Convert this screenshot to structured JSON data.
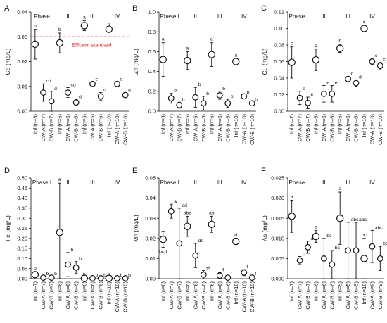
{
  "colors": {
    "ink": "#111111",
    "marker_fill": "#ffffff",
    "reference_line": "#e0191b"
  },
  "chart_data": [
    {
      "type": "scatter",
      "panel": "A",
      "ylabel": "Cd (mg/L)",
      "ylim": [
        0,
        0.04
      ],
      "yticks": [
        "0.00",
        "0.01",
        "0.02",
        "0.03",
        "0.04"
      ],
      "phases": [
        "Phase",
        "II",
        "III",
        "IV"
      ],
      "reference_line": {
        "y": 0.03,
        "label": "Effluent standard"
      },
      "groups": [
        {
          "categories": [
            "Inf (n=8)",
            "CW-A (n=7)",
            "CW-B (n=7)"
          ],
          "points": [
            {
              "mean": 0.027,
              "sd": 0.006,
              "letter": "b"
            },
            {
              "mean": 0.0075,
              "sd": 0.0035,
              "letter": "cd"
            },
            {
              "mean": 0.004,
              "sd": 0.004,
              "letter": "d"
            }
          ]
        },
        {
          "categories": [
            "Inf (n=6)",
            "CW-A (n=6)",
            "CW-B (n=6)"
          ],
          "points": [
            {
              "mean": 0.0275,
              "sd": 0.004,
              "letter": "b"
            },
            {
              "mean": 0.0075,
              "sd": 0.002,
              "letter": "cd"
            },
            {
              "mean": 0.0035,
              "sd": 0.0012,
              "letter": "d"
            }
          ]
        },
        {
          "categories": [
            "Inf (n=6)",
            "CW-A (n=6)",
            "CW-B (n=6)"
          ],
          "points": [
            {
              "mean": 0.0345,
              "sd": 0.002,
              "letter": "a"
            },
            {
              "mean": 0.011,
              "sd": 0.0008,
              "letter": "c"
            },
            {
              "mean": 0.006,
              "sd": 0.0015,
              "letter": "d"
            }
          ]
        },
        {
          "categories": [
            "Inf (n=10)",
            "CW-A (n=10)",
            "CW-B (n=10)"
          ],
          "points": [
            {
              "mean": 0.033,
              "sd": 0.0005,
              "letter": "a"
            },
            {
              "mean": 0.011,
              "sd": 0.0008,
              "letter": "c"
            },
            {
              "mean": 0.0065,
              "sd": 0.0008,
              "letter": "d"
            }
          ]
        }
      ]
    },
    {
      "type": "scatter",
      "panel": "B",
      "ylabel": "Zn (mg/L)",
      "ylim": [
        0,
        1
      ],
      "yticks": [
        "0.0",
        "0.2",
        "0.4",
        "0.6",
        "0.8",
        "1.0"
      ],
      "phases": [
        "Phase I",
        "II",
        "III",
        "IV"
      ],
      "groups": [
        {
          "categories": [
            "Inf (n=8)",
            "CW-A (n=7)",
            "CW-B (n=7)"
          ],
          "points": [
            {
              "mean": 0.52,
              "sd": 0.17,
              "letter": "a"
            },
            {
              "mean": 0.13,
              "sd": 0.05,
              "letter": "b"
            },
            {
              "mean": 0.06,
              "sd": 0.03,
              "letter": "b"
            }
          ]
        },
        {
          "categories": [
            "Inf (n=6)",
            "CW-A (n=6)",
            "CW-B (n=6)"
          ],
          "points": [
            {
              "mean": 0.51,
              "sd": 0.09,
              "letter": "a"
            },
            {
              "mean": 0.14,
              "sd": 0.1,
              "letter": "b"
            },
            {
              "mean": 0.08,
              "sd": 0.07,
              "letter": "b"
            }
          ]
        },
        {
          "categories": [
            "Inf (n=6)",
            "CW-A (n=6)",
            "CW-B (n=6)"
          ],
          "points": [
            {
              "mean": 0.57,
              "sd": 0.12,
              "letter": "a"
            },
            {
              "mean": 0.16,
              "sd": 0.04,
              "letter": "b"
            },
            {
              "mean": 0.08,
              "sd": 0.04,
              "letter": "b"
            }
          ]
        },
        {
          "categories": [
            "Inf (n=10)",
            "CW-A (n=10)",
            "CW-B (n=10)"
          ],
          "points": [
            {
              "mean": 0.5,
              "sd": 0.03,
              "letter": "a"
            },
            {
              "mean": 0.15,
              "sd": 0.01,
              "letter": "b"
            },
            {
              "mean": 0.08,
              "sd": 0.01,
              "letter": "b"
            }
          ]
        }
      ]
    },
    {
      "type": "scatter",
      "panel": "C",
      "ylabel": "Cu (mg/L)",
      "ylim": [
        0,
        0.12
      ],
      "yticks": [
        "0.00",
        "0.02",
        "0.04",
        "0.06",
        "0.08",
        "0.10",
        "0.12"
      ],
      "phases": [
        "Phase I",
        "II",
        "III",
        "IV"
      ],
      "groups": [
        {
          "categories": [
            "Inf (n=7)",
            "CW-A (n=7)",
            "CW-B (n=7)"
          ],
          "points": [
            {
              "mean": 0.059,
              "sd": 0.019,
              "letter": "c"
            },
            {
              "mean": 0.016,
              "sd": 0.008,
              "letter": "e"
            },
            {
              "mean": 0.01,
              "sd": 0.007,
              "letter": "e"
            }
          ]
        },
        {
          "categories": [
            "Inf (n=6)",
            "CW-A (n=6)",
            "CW-B (n=6)"
          ],
          "points": [
            {
              "mean": 0.062,
              "sd": 0.013,
              "letter": "c"
            },
            {
              "mean": 0.021,
              "sd": 0.01,
              "letter": "e"
            },
            {
              "mean": 0.021,
              "sd": 0.01,
              "letter": "e"
            }
          ]
        },
        {
          "categories": [
            "Inf (n=6)",
            "CW-A (n=6)",
            "CW-B (n=6)"
          ],
          "points": [
            {
              "mean": 0.076,
              "sd": 0.005,
              "letter": "b"
            },
            {
              "mean": 0.039,
              "sd": 0.003,
              "letter": "d"
            },
            {
              "mean": 0.034,
              "sd": 0.004,
              "letter": "d"
            }
          ]
        },
        {
          "categories": [
            "Inf (n=10)",
            "CW-A (n=10)",
            "CW-B (n=10)"
          ],
          "points": [
            {
              "mean": 0.1,
              "sd": 0.004,
              "letter": "a"
            },
            {
              "mean": 0.06,
              "sd": 0.004,
              "letter": "c"
            },
            {
              "mean": 0.055,
              "sd": 0.004,
              "letter": "c"
            }
          ]
        }
      ]
    },
    {
      "type": "scatter",
      "panel": "D",
      "ylabel": "Fe (mg/L)",
      "ylim": [
        0,
        0.5
      ],
      "yticks": [
        "0.00",
        "0.05",
        "0.10",
        "0.15",
        "0.20",
        "0.25",
        "0.30",
        "0.35",
        "0.40",
        "0.45",
        "0.50"
      ],
      "phases": [
        "Phase I",
        "II",
        "III",
        "IV"
      ],
      "groups": [
        {
          "categories": [
            "Inf (n=7)",
            "CW-A (n=7)",
            "CW-B (n=7)"
          ],
          "points": [
            {
              "mean": 0.02,
              "sd": 0.015,
              "letter": "b"
            },
            {
              "mean": 0.005,
              "sd": 0.005,
              "letter": "b"
            },
            {
              "mean": 0.005,
              "sd": 0.005,
              "letter": "b"
            }
          ]
        },
        {
          "categories": [
            "Inf (n=6)",
            "CW-A (n=6)",
            "CW-B (n=6)"
          ],
          "points": [
            {
              "mean": 0.23,
              "sd": 0.245,
              "letter": "a"
            },
            {
              "mean": 0.07,
              "sd": 0.06,
              "letter": "b"
            },
            {
              "mean": 0.055,
              "sd": 0.03,
              "letter": "b"
            }
          ]
        },
        {
          "categories": [
            "Inf (n=6)",
            "CW-A (n=6)",
            "CW-B (n=6)"
          ],
          "points": [
            {
              "mean": 0.002,
              "sd": 0.002,
              "letter": "b"
            },
            {
              "mean": 0.002,
              "sd": 0.002,
              "letter": "b"
            },
            {
              "mean": 0.002,
              "sd": 0.002,
              "letter": "b"
            }
          ]
        },
        {
          "categories": [
            "Inf (n=10)",
            "CW-A (n=10)",
            "CW-B (n=10)"
          ],
          "points": [
            {
              "mean": 0.002,
              "sd": 0.002,
              "letter": "b"
            },
            {
              "mean": 0.002,
              "sd": 0.002,
              "letter": "b"
            },
            {
              "mean": 0.002,
              "sd": 0.002,
              "letter": "b"
            }
          ]
        }
      ]
    },
    {
      "type": "scatter",
      "panel": "E",
      "ylabel": "Mn (mg/L)",
      "ylim": [
        0,
        0.05
      ],
      "yticks": [
        "0.00",
        "0.01",
        "0.02",
        "0.03",
        "0.04",
        "0.05"
      ],
      "phases": [
        "Phase I",
        "II",
        "III",
        "IV"
      ],
      "groups": [
        {
          "categories": [
            "Inf (n=8)",
            "CW-A (n=7)",
            "CW-B (n=7)"
          ],
          "points": [
            {
              "mean": 0.0195,
              "sd": 0.004,
              "letter": "bcd",
              "letter_below": true
            },
            {
              "mean": 0.0335,
              "sd": 0.0035,
              "letter": "a"
            },
            {
              "mean": 0.0175,
              "sd": 0.0175,
              "letter": "cd"
            }
          ]
        },
        {
          "categories": [
            "Inf (n=6)",
            "CW-A (n=6)",
            "CW-B (n=6)"
          ],
          "points": [
            {
              "mean": 0.026,
              "sd": 0.005,
              "letter": "abc"
            },
            {
              "mean": 0.0115,
              "sd": 0.006,
              "letter": "de"
            },
            {
              "mean": 0.002,
              "sd": 0.002,
              "letter": "ef"
            }
          ]
        },
        {
          "categories": [
            "Inf (n=6)",
            "CW-A (n=6)",
            "CW-B (n=6)"
          ],
          "points": [
            {
              "mean": 0.027,
              "sd": 0.004,
              "letter": "ab"
            },
            {
              "mean": 0.0015,
              "sd": 0.0015,
              "letter": "f"
            },
            {
              "mean": 0.0005,
              "sd": 0.0005,
              "letter": "f"
            }
          ]
        },
        {
          "categories": [
            "Inf (n=10)",
            "CW-A (n=10)",
            "CW-B (n=10)"
          ],
          "points": [
            {
              "mean": 0.0185,
              "sd": 0.0015,
              "letter": "d"
            },
            {
              "mean": 0.003,
              "sd": 0.0015,
              "letter": "f"
            },
            {
              "mean": 0.0005,
              "sd": 0.0005,
              "letter": "f"
            }
          ]
        }
      ]
    },
    {
      "type": "scatter",
      "panel": "F",
      "ylabel": "As (mg/L)",
      "ylim": [
        0,
        0.025
      ],
      "yticks": [
        "0.000",
        "0.005",
        "0.010",
        "0.015",
        "0.020",
        "0.025"
      ],
      "phases": [
        "Phase I",
        "II",
        "III",
        "IV"
      ],
      "groups": [
        {
          "categories": [
            "Inf (n=7)",
            "CW-A (n=7)",
            "CW-B (n=7)"
          ],
          "points": [
            {
              "mean": 0.0155,
              "sd": 0.004,
              "letter": "a"
            },
            {
              "mean": 0.0045,
              "sd": 0.001,
              "letter": "c"
            },
            {
              "mean": 0.0078,
              "sd": 0.0015,
              "letter": "ab"
            }
          ]
        },
        {
          "categories": [
            "Inf (n=6)",
            "CW-A (n=6)",
            "CW-B (n=6)"
          ],
          "points": [
            {
              "mean": 0.0105,
              "sd": 0.0015,
              "letter": "a"
            },
            {
              "mean": 0.005,
              "sd": 0.005,
              "letter": "bc"
            },
            {
              "mean": 0.0035,
              "sd": 0.0035,
              "letter": "bc"
            }
          ]
        },
        {
          "categories": [
            "Inf (n=5)",
            "CW-A (n=5)",
            "CW-B (n=5)"
          ],
          "points": [
            {
              "mean": 0.015,
              "sd": 0.0065,
              "letter": "a"
            },
            {
              "mean": 0.007,
              "sd": 0.007,
              "letter": "abc"
            },
            {
              "mean": 0.007,
              "sd": 0.007,
              "letter": "abc"
            }
          ]
        },
        {
          "categories": [
            "Inf (n=10)",
            "CW-A (n=9)",
            "CW-B (n=9)"
          ],
          "points": [
            {
              "mean": 0.005,
              "sd": 0.005,
              "letter": "bc"
            },
            {
              "mean": 0.008,
              "sd": 0.004,
              "letter": "abc"
            },
            {
              "mean": 0.005,
              "sd": 0.003,
              "letter": "bc"
            }
          ]
        }
      ]
    }
  ]
}
